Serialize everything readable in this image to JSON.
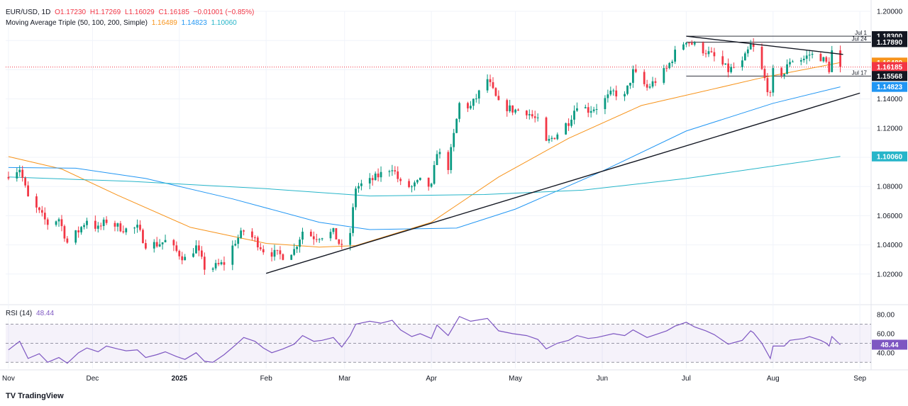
{
  "header": {
    "symbol": "EUR/USD, 1D",
    "open": "O1.17230",
    "high": "H1.17269",
    "low": "L1.16029",
    "close": "C1.16185",
    "change": "−0.01001 (−0.85%)",
    "ma_label": "Moving Average Triple (50, 100, 200, Simple)",
    "ma50_value": "1.16489",
    "ma100_value": "1.14823",
    "ma200_value": "1.10060",
    "rsi_label": "RSI (14)",
    "rsi_value": "48.44"
  },
  "footer": {
    "logo_text": "TradingView"
  },
  "colors": {
    "up": "#089981",
    "down": "#f23645",
    "ma50": "#f7931a",
    "ma100": "#2196f3",
    "ma200": "#26b5c9",
    "rsi": "#7e57c2",
    "trendline": "#131722"
  },
  "chart_data": [
    {
      "type": "candlestick",
      "title": "EUR/USD, 1D",
      "x_tick_labels": [
        "Nov",
        "Dec",
        "2025",
        "Feb",
        "Mar",
        "Apr",
        "May",
        "Jun",
        "Jul",
        "Aug",
        "Sep"
      ],
      "y_tick_labels": [
        "1.20000",
        "1.18000",
        "1.16000",
        "1.14000",
        "1.12000",
        "1.10000",
        "1.08000",
        "1.06000",
        "1.04000",
        "1.02000"
      ],
      "ylim": [
        1.0,
        1.2
      ],
      "price_path": [
        [
          "2024-11-01",
          1.0885
        ],
        [
          "2024-11-05",
          1.0925
        ],
        [
          "2024-11-08",
          1.072
        ],
        [
          "2024-11-12",
          1.062
        ],
        [
          "2024-11-15",
          1.0545
        ],
        [
          "2024-11-19",
          1.058
        ],
        [
          "2024-11-22",
          1.0415
        ],
        [
          "2024-11-26",
          1.0495
        ],
        [
          "2024-11-29",
          1.0575
        ],
        [
          "2024-12-03",
          1.051
        ],
        [
          "2024-12-06",
          1.0565
        ],
        [
          "2024-12-10",
          1.0525
        ],
        [
          "2024-12-13",
          1.0505
        ],
        [
          "2024-12-17",
          1.0515
        ],
        [
          "2024-12-20",
          1.0405
        ],
        [
          "2024-12-24",
          1.0405
        ],
        [
          "2024-12-27",
          1.0425
        ],
        [
          "2024-12-31",
          1.0355
        ],
        [
          "2025-01-03",
          1.0305
        ],
        [
          "2025-01-07",
          1.0385
        ],
        [
          "2025-01-10",
          1.0245
        ],
        [
          "2025-01-13",
          1.0245
        ],
        [
          "2025-01-17",
          1.0275
        ],
        [
          "2025-01-21",
          1.0425
        ],
        [
          "2025-01-24",
          1.0495
        ],
        [
          "2025-01-28",
          1.0435
        ],
        [
          "2025-01-31",
          1.0365
        ],
        [
          "2025-02-03",
          1.0345
        ],
        [
          "2025-02-07",
          1.0325
        ],
        [
          "2025-02-11",
          1.0365
        ],
        [
          "2025-02-14",
          1.0495
        ],
        [
          "2025-02-18",
          1.0455
        ],
        [
          "2025-02-21",
          1.0465
        ],
        [
          "2025-02-25",
          1.0485
        ],
        [
          "2025-02-28",
          1.0375
        ],
        [
          "2025-03-03",
          1.0485
        ],
        [
          "2025-03-05",
          1.0795
        ],
        [
          "2025-03-10",
          1.0835
        ],
        [
          "2025-03-14",
          1.0885
        ],
        [
          "2025-03-18",
          1.0935
        ],
        [
          "2025-03-21",
          1.0815
        ],
        [
          "2025-03-25",
          1.0795
        ],
        [
          "2025-03-28",
          1.0835
        ],
        [
          "2025-04-01",
          1.0795
        ],
        [
          "2025-04-03",
          1.1045
        ],
        [
          "2025-04-07",
          1.0935
        ],
        [
          "2025-04-11",
          1.1365
        ],
        [
          "2025-04-15",
          1.1345
        ],
        [
          "2025-04-21",
          1.1535
        ],
        [
          "2025-04-25",
          1.1365
        ],
        [
          "2025-04-30",
          1.1325
        ],
        [
          "2025-05-05",
          1.1315
        ],
        [
          "2025-05-09",
          1.1245
        ],
        [
          "2025-05-12",
          1.1095
        ],
        [
          "2025-05-16",
          1.1165
        ],
        [
          "2025-05-20",
          1.1245
        ],
        [
          "2025-05-23",
          1.1365
        ],
        [
          "2025-05-27",
          1.1325
        ],
        [
          "2025-05-30",
          1.1345
        ],
        [
          "2025-06-05",
          1.1445
        ],
        [
          "2025-06-09",
          1.1415
        ],
        [
          "2025-06-12",
          1.1585
        ],
        [
          "2025-06-17",
          1.1475
        ],
        [
          "2025-06-20",
          1.1525
        ],
        [
          "2025-06-24",
          1.1605
        ],
        [
          "2025-06-27",
          1.1715
        ],
        [
          "2025-07-01",
          1.1805
        ],
        [
          "2025-07-04",
          1.1765
        ],
        [
          "2025-07-08",
          1.1725
        ],
        [
          "2025-07-11",
          1.1685
        ],
        [
          "2025-07-16",
          1.1595
        ],
        [
          "2025-07-21",
          1.1645
        ],
        [
          "2025-07-24",
          1.1765
        ],
        [
          "2025-07-25",
          1.1745
        ],
        [
          "2025-07-28",
          1.1595
        ],
        [
          "2025-07-31",
          1.1415
        ],
        [
          "2025-08-01",
          1.1585
        ],
        [
          "2025-08-05",
          1.1575
        ],
        [
          "2025-08-07",
          1.1665
        ],
        [
          "2025-08-12",
          1.1675
        ],
        [
          "2025-08-14",
          1.1705
        ],
        [
          "2025-08-18",
          1.1685
        ],
        [
          "2025-08-20",
          1.1645
        ],
        [
          "2025-08-21",
          1.1605
        ],
        [
          "2025-08-22",
          1.1725
        ],
        [
          "2025-08-25",
          1.16185
        ]
      ],
      "series": [
        {
          "name": "50",
          "values": [
            [
              "2024-11-01",
              1.1005
            ],
            [
              "2024-11-20",
              1.092
            ],
            [
              "2024-12-10",
              1.074
            ],
            [
              "2025-01-05",
              1.052
            ],
            [
              "2025-02-01",
              1.041
            ],
            [
              "2025-02-20",
              1.0385
            ],
            [
              "2025-03-05",
              1.0395
            ],
            [
              "2025-04-01",
              1.0555
            ],
            [
              "2025-04-25",
              1.0865
            ],
            [
              "2025-05-20",
              1.113
            ],
            [
              "2025-06-15",
              1.1355
            ],
            [
              "2025-07-10",
              1.1465
            ],
            [
              "2025-07-28",
              1.1545
            ],
            [
              "2025-08-25",
              1.16489
            ]
          ]
        },
        {
          "name": "100",
          "values": [
            [
              "2024-11-01",
              1.093
            ],
            [
              "2024-11-25",
              1.0925
            ],
            [
              "2024-12-20",
              1.0855
            ],
            [
              "2025-01-20",
              1.0715
            ],
            [
              "2025-02-20",
              1.0555
            ],
            [
              "2025-03-10",
              1.0505
            ],
            [
              "2025-04-10",
              1.0515
            ],
            [
              "2025-05-01",
              1.0645
            ],
            [
              "2025-06-01",
              1.0905
            ],
            [
              "2025-07-01",
              1.118
            ],
            [
              "2025-08-01",
              1.137
            ],
            [
              "2025-08-25",
              1.14823
            ]
          ]
        },
        {
          "name": "200",
          "values": [
            [
              "2024-11-01",
              1.0865
            ],
            [
              "2024-12-15",
              1.0835
            ],
            [
              "2025-02-01",
              1.0785
            ],
            [
              "2025-03-10",
              1.0735
            ],
            [
              "2025-04-20",
              1.0745
            ],
            [
              "2025-05-25",
              1.0775
            ],
            [
              "2025-07-01",
              1.0855
            ],
            [
              "2025-08-01",
              1.094
            ],
            [
              "2025-08-25",
              1.1006
            ]
          ]
        }
      ],
      "trendlines": [
        {
          "from": [
            "2025-02-01",
            1.0205
          ],
          "to": [
            "2025-09-01",
            1.144
          ]
        },
        {
          "from": [
            "2025-07-01",
            1.183
          ],
          "to": [
            "2025-08-26",
            1.1705
          ]
        }
      ],
      "levels": [
        {
          "label": "Jul 1",
          "price": "1.18300",
          "value": 1.183
        },
        {
          "label": "Jul 24",
          "price": "1.17890",
          "value": 1.1789
        },
        {
          "label": "Jul 17",
          "price": "1.15568",
          "value": 1.15568
        }
      ],
      "price_tags": [
        {
          "value": 1.16489,
          "text": "1.16489",
          "bg": "#f7931a",
          "fg": "#ffffff"
        },
        {
          "value": 1.16185,
          "text": "1.16185",
          "bg": "#f23645",
          "fg": "#ffffff"
        },
        {
          "value": 1.14823,
          "text": "1.14823",
          "bg": "#2196f3",
          "fg": "#ffffff"
        },
        {
          "value": 1.1006,
          "text": "1.10060",
          "bg": "#26b5c9",
          "fg": "#ffffff"
        }
      ]
    },
    {
      "type": "line",
      "title": "RSI (14)",
      "y_tick_labels": [
        "80.00",
        "60.00",
        "40.00"
      ],
      "ylim": [
        25,
        83
      ],
      "bands": [
        70,
        50,
        30
      ],
      "series": [
        {
          "name": "RSI (14)",
          "values": [
            [
              "2024-11-01",
              43
            ],
            [
              "2024-11-05",
              52
            ],
            [
              "2024-11-08",
              34
            ],
            [
              "2024-11-12",
              39
            ],
            [
              "2024-11-15",
              30
            ],
            [
              "2024-11-19",
              35
            ],
            [
              "2024-11-22",
              29
            ],
            [
              "2024-11-26",
              40
            ],
            [
              "2024-11-29",
              45
            ],
            [
              "2024-12-03",
              41
            ],
            [
              "2024-12-06",
              47
            ],
            [
              "2024-12-10",
              44
            ],
            [
              "2024-12-13",
              42
            ],
            [
              "2024-12-17",
              43
            ],
            [
              "2024-12-20",
              35
            ],
            [
              "2024-12-24",
              38
            ],
            [
              "2024-12-27",
              41
            ],
            [
              "2024-12-31",
              36
            ],
            [
              "2025-01-03",
              33
            ],
            [
              "2025-01-07",
              40
            ],
            [
              "2025-01-10",
              31
            ],
            [
              "2025-01-13",
              30
            ],
            [
              "2025-01-17",
              38
            ],
            [
              "2025-01-21",
              48
            ],
            [
              "2025-01-24",
              56
            ],
            [
              "2025-01-28",
              52
            ],
            [
              "2025-01-31",
              45
            ],
            [
              "2025-02-03",
              40
            ],
            [
              "2025-02-07",
              44
            ],
            [
              "2025-02-11",
              49
            ],
            [
              "2025-02-14",
              58
            ],
            [
              "2025-02-18",
              52
            ],
            [
              "2025-02-21",
              53
            ],
            [
              "2025-02-25",
              56
            ],
            [
              "2025-02-28",
              46
            ],
            [
              "2025-03-03",
              58
            ],
            [
              "2025-03-05",
              70
            ],
            [
              "2025-03-10",
              73
            ],
            [
              "2025-03-14",
              71
            ],
            [
              "2025-03-18",
              74
            ],
            [
              "2025-03-21",
              64
            ],
            [
              "2025-03-25",
              57
            ],
            [
              "2025-03-28",
              60
            ],
            [
              "2025-04-01",
              55
            ],
            [
              "2025-04-03",
              69
            ],
            [
              "2025-04-07",
              58
            ],
            [
              "2025-04-11",
              78
            ],
            [
              "2025-04-15",
              73
            ],
            [
              "2025-04-21",
              76
            ],
            [
              "2025-04-25",
              63
            ],
            [
              "2025-04-30",
              60
            ],
            [
              "2025-05-05",
              58
            ],
            [
              "2025-05-09",
              54
            ],
            [
              "2025-05-12",
              44
            ],
            [
              "2025-05-16",
              50
            ],
            [
              "2025-05-20",
              53
            ],
            [
              "2025-05-23",
              58
            ],
            [
              "2025-05-27",
              55
            ],
            [
              "2025-05-30",
              56
            ],
            [
              "2025-06-05",
              60
            ],
            [
              "2025-06-09",
              58
            ],
            [
              "2025-06-12",
              64
            ],
            [
              "2025-06-17",
              56
            ],
            [
              "2025-06-20",
              59
            ],
            [
              "2025-06-24",
              63
            ],
            [
              "2025-06-27",
              68
            ],
            [
              "2025-07-01",
              72
            ],
            [
              "2025-07-04",
              67
            ],
            [
              "2025-07-08",
              63
            ],
            [
              "2025-07-11",
              59
            ],
            [
              "2025-07-16",
              49
            ],
            [
              "2025-07-21",
              53
            ],
            [
              "2025-07-24",
              63
            ],
            [
              "2025-07-25",
              61
            ],
            [
              "2025-07-28",
              50
            ],
            [
              "2025-07-31",
              34
            ],
            [
              "2025-08-01",
              47
            ],
            [
              "2025-08-05",
              47
            ],
            [
              "2025-08-07",
              53
            ],
            [
              "2025-08-12",
              55
            ],
            [
              "2025-08-14",
              57
            ],
            [
              "2025-08-18",
              53
            ],
            [
              "2025-08-20",
              50
            ],
            [
              "2025-08-21",
              47
            ],
            [
              "2025-08-22",
              57
            ],
            [
              "2025-08-25",
              48.44
            ]
          ]
        }
      ]
    }
  ]
}
